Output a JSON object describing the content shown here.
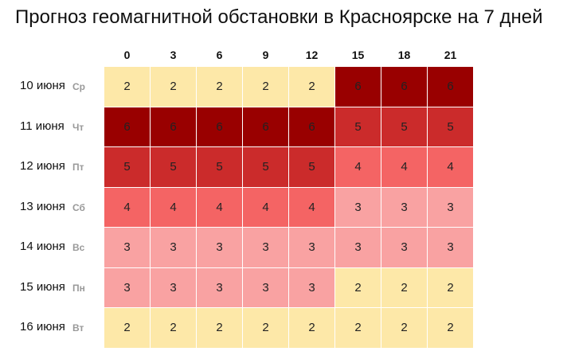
{
  "title": "Прогноз геомагнитной обстановки в Красноярске на 7 дней",
  "columns": [
    "0",
    "3",
    "6",
    "9",
    "12",
    "15",
    "18",
    "21"
  ],
  "level_colors": {
    "2": "#fde8a8",
    "3": "#f9a2a2",
    "4": "#f46464",
    "5": "#cb2b2b",
    "6": "#990000"
  },
  "rows": [
    {
      "date": "10 июня",
      "weekday": "Ср",
      "values": [
        2,
        2,
        2,
        2,
        2,
        6,
        6,
        6
      ]
    },
    {
      "date": "11 июня",
      "weekday": "Чт",
      "values": [
        6,
        6,
        6,
        6,
        6,
        5,
        5,
        5
      ]
    },
    {
      "date": "12 июня",
      "weekday": "Пт",
      "values": [
        5,
        5,
        5,
        5,
        5,
        4,
        4,
        4
      ]
    },
    {
      "date": "13 июня",
      "weekday": "Сб",
      "values": [
        4,
        4,
        4,
        4,
        4,
        3,
        3,
        3
      ]
    },
    {
      "date": "14 июня",
      "weekday": "Вс",
      "values": [
        3,
        3,
        3,
        3,
        3,
        3,
        3,
        3
      ]
    },
    {
      "date": "15 июня",
      "weekday": "Пн",
      "values": [
        3,
        3,
        3,
        3,
        3,
        2,
        2,
        2
      ]
    },
    {
      "date": "16 июня",
      "weekday": "Вт",
      "values": [
        2,
        2,
        2,
        2,
        2,
        2,
        2,
        2
      ]
    }
  ]
}
